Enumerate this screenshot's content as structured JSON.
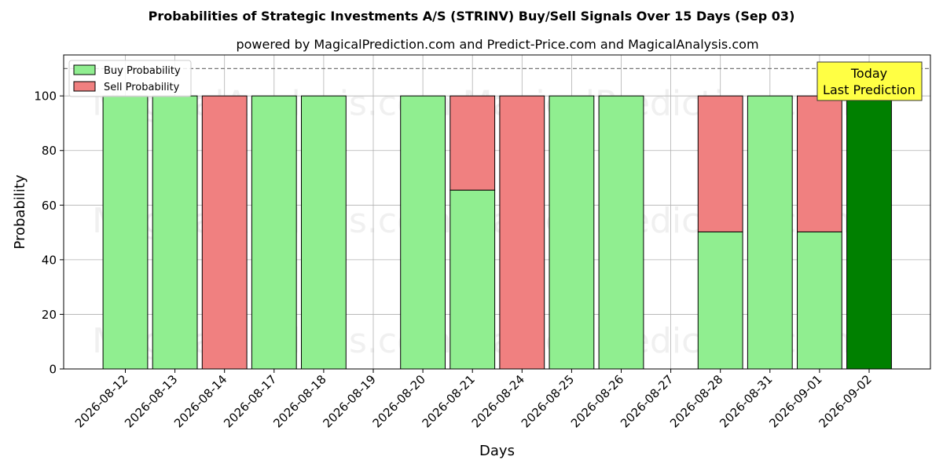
{
  "chart_data": {
    "type": "bar",
    "title": "Probabilities of Strategic Investments A/S (STRINV) Buy/Sell Signals Over 15 Days (Sep 03)",
    "subtitle": "powered by MagicalPrediction.com and Predict-Price.com and MagicalAnalysis.com",
    "xlabel": "Days",
    "ylabel": "Probability",
    "ylim": [
      0,
      115
    ],
    "yticks": [
      0,
      20,
      40,
      60,
      80,
      100
    ],
    "grid": true,
    "legend_position": "top-left",
    "reference_line": {
      "value": 110,
      "style": "dashed"
    },
    "categories": [
      "2026-08-12",
      "2026-08-13",
      "2026-08-14",
      "2026-08-17",
      "2026-08-18",
      "2026-08-19",
      "2026-08-20",
      "2026-08-21",
      "2026-08-24",
      "2026-08-25",
      "2026-08-26",
      "2026-08-27",
      "2026-08-28",
      "2026-08-31",
      "2026-09-01",
      "2026-09-02"
    ],
    "series": [
      {
        "name": "Buy Probability",
        "color": "#90ee90",
        "values": [
          100,
          100,
          0,
          100,
          100,
          null,
          100,
          65.5,
          0,
          100,
          100,
          null,
          50.2,
          100,
          50.2,
          100
        ]
      },
      {
        "name": "Sell Probability",
        "color": "#f08080",
        "values": [
          0,
          0,
          100,
          0,
          0,
          null,
          0,
          34.5,
          100,
          0,
          0,
          null,
          49.8,
          0,
          49.8,
          0
        ]
      }
    ],
    "highlight": {
      "category": "2026-09-02",
      "color": "#008000"
    },
    "annotation": {
      "lines": [
        "Today",
        "Last Prediction"
      ],
      "background": "#ffff44"
    },
    "watermarks": [
      "MagicalAnalysis.com",
      "MagicalPrediction.com"
    ]
  }
}
